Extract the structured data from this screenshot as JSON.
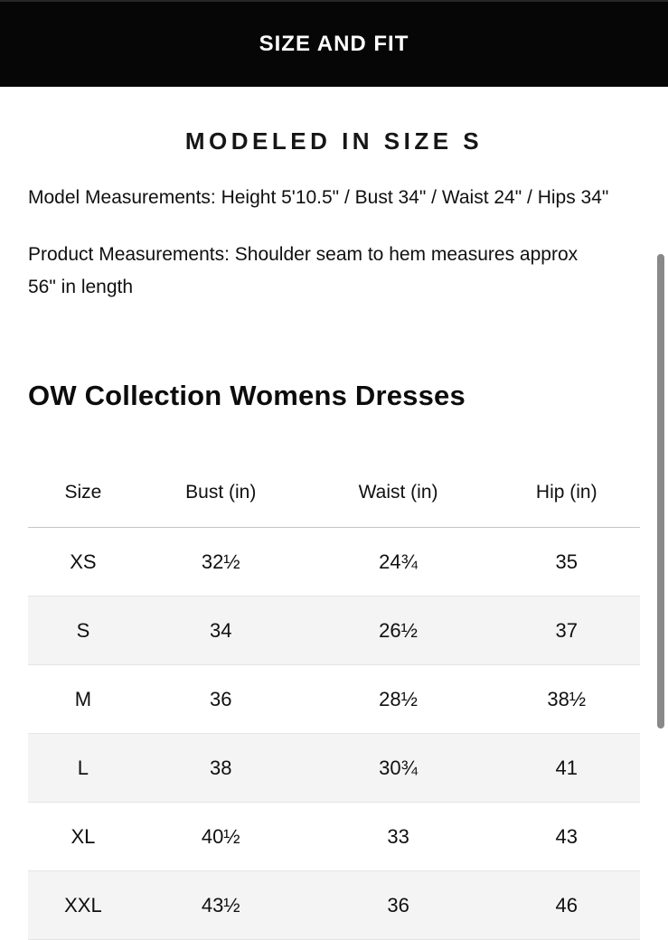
{
  "header": {
    "title": "SIZE AND FIT"
  },
  "section": {
    "heading": "MODELED IN SIZE S"
  },
  "measurements": {
    "model": "Model Measurements: Height 5'10.5\" / Bust 34\" / Waist 24\" / Hips 34\"",
    "product": "Product Measurements: Shoulder seam to hem measures approx 56\" in length"
  },
  "size_chart": {
    "title": "OW Collection Womens Dresses",
    "columns": [
      "Size",
      "Bust (in)",
      "Waist (in)",
      "Hip (in)"
    ],
    "rows": [
      {
        "size": "XS",
        "bust": "32½",
        "waist": "24¾",
        "hip": "35"
      },
      {
        "size": "S",
        "bust": "34",
        "waist": "26½",
        "hip": "37"
      },
      {
        "size": "M",
        "bust": "36",
        "waist": "28½",
        "hip": "38½"
      },
      {
        "size": "L",
        "bust": "38",
        "waist": "30¾",
        "hip": "41"
      },
      {
        "size": "XL",
        "bust": "40½",
        "waist": "33",
        "hip": "43"
      },
      {
        "size": "XXL",
        "bust": "43½",
        "waist": "36",
        "hip": "46"
      }
    ]
  },
  "colors": {
    "header-bg": "#060606",
    "header-text": "#ffffff",
    "body-text": "#111111",
    "stripe": "#f4f4f4",
    "row-border": "#e4e4e4",
    "head-border": "#c6c6c6",
    "scrollbar": "#898989"
  }
}
